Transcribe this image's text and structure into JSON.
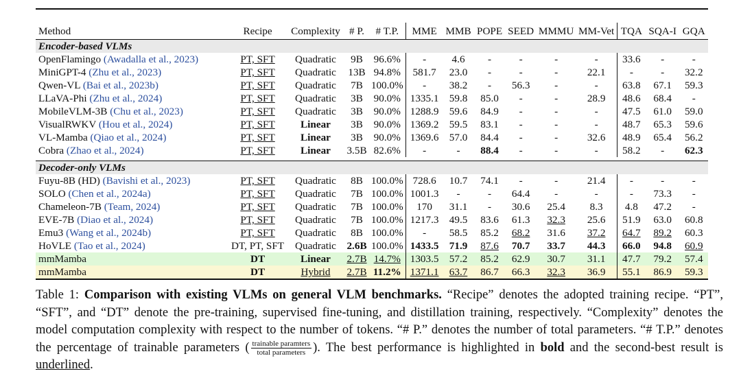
{
  "columns": [
    "Method",
    "Recipe",
    "Complexity",
    "# P.",
    "# T.P.",
    "MME",
    "MMB",
    "POPE",
    "SEED",
    "MMMU",
    "MM-Vet",
    "TQA",
    "SQA-I",
    "GQA"
  ],
  "sections": [
    {
      "title": "Encoder-based VLMs",
      "rows": [
        {
          "name": "OpenFlamingo",
          "cite": "(Awadalla et al., 2023)",
          "cells": [
            "PT, SFT",
            "Quadratic",
            "9B",
            "96.6%",
            "-",
            "4.6",
            "-",
            "-",
            "-",
            "-",
            "33.6",
            "-",
            "-"
          ],
          "bold": [],
          "underline": [
            1
          ]
        },
        {
          "name": "MiniGPT-4",
          "cite": "(Zhu et al., 2023)",
          "cells": [
            "PT, SFT",
            "Quadratic",
            "13B",
            "94.8%",
            "581.7",
            "23.0",
            "-",
            "-",
            "-",
            "22.1",
            "-",
            "-",
            "32.2"
          ],
          "bold": [],
          "underline": [
            1
          ]
        },
        {
          "name": "Qwen-VL",
          "cite": "(Bai et al., 2023b)",
          "cells": [
            "PT, SFT",
            "Quadratic",
            "7B",
            "100.0%",
            "-",
            "38.2",
            "-",
            "56.3",
            "-",
            "-",
            "63.8",
            "67.1",
            "59.3"
          ],
          "bold": [],
          "underline": [
            1
          ]
        },
        {
          "name": "LLaVA-Phi",
          "cite": "(Zhu et al., 2024)",
          "cells": [
            "PT, SFT",
            "Quadratic",
            "3B",
            "90.0%",
            "1335.1",
            "59.8",
            "85.0",
            "-",
            "-",
            "28.9",
            "48.6",
            "68.4",
            "-"
          ],
          "bold": [],
          "underline": [
            1
          ]
        },
        {
          "name": "MobileVLM-3B",
          "cite": "(Chu et al., 2023)",
          "cells": [
            "PT, SFT",
            "Quadratic",
            "3B",
            "90.0%",
            "1288.9",
            "59.6",
            "84.9",
            "-",
            "-",
            "-",
            "47.5",
            "61.0",
            "59.0"
          ],
          "bold": [],
          "underline": [
            1
          ]
        },
        {
          "name": "VisualRWKV",
          "cite": "(Hou et al., 2024)",
          "cells": [
            "PT, SFT",
            "Linear",
            "3B",
            "90.0%",
            "1369.2",
            "59.5",
            "83.1",
            "-",
            "-",
            "-",
            "48.7",
            "65.3",
            "59.6"
          ],
          "bold": [
            2
          ],
          "underline": [
            1
          ]
        },
        {
          "name": "VL-Mamba",
          "cite": "(Qiao et al., 2024)",
          "cells": [
            "PT, SFT",
            "Linear",
            "3B",
            "90.0%",
            "1369.6",
            "57.0",
            "84.4",
            "-",
            "-",
            "32.6",
            "48.9",
            "65.4",
            "56.2"
          ],
          "bold": [
            2
          ],
          "underline": [
            1
          ]
        },
        {
          "name": "Cobra",
          "cite": "(Zhao et al., 2024)",
          "cells": [
            "PT, SFT",
            "Linear",
            "3.5B",
            "82.6%",
            "-",
            "-",
            "88.4",
            "-",
            "-",
            "-",
            "58.2",
            "-",
            "62.3"
          ],
          "bold": [
            2,
            7,
            13
          ],
          "underline": [
            1
          ]
        }
      ]
    },
    {
      "title": "Decoder-only VLMs",
      "rows": [
        {
          "name": "Fuyu-8B (HD)",
          "cite": "(Bavishi et al., 2023)",
          "cells": [
            "PT, SFT",
            "Quadratic",
            "8B",
            "100.0%",
            "728.6",
            "10.7",
            "74.1",
            "-",
            "-",
            "21.4",
            "-",
            "-",
            "-"
          ],
          "bold": [],
          "underline": [
            1
          ]
        },
        {
          "name": "SOLO",
          "cite": "(Chen et al., 2024a)",
          "cells": [
            "PT, SFT",
            "Quadratic",
            "7B",
            "100.0%",
            "1001.3",
            "-",
            "-",
            "64.4",
            "-",
            "-",
            "-",
            "73.3",
            "-"
          ],
          "bold": [],
          "underline": [
            1
          ]
        },
        {
          "name": "Chameleon-7B",
          "cite": "(Team, 2024)",
          "cells": [
            "PT, SFT",
            "Quadratic",
            "7B",
            "100.0%",
            "170",
            "31.1",
            "-",
            "30.6",
            "25.4",
            "8.3",
            "4.8",
            "47.2",
            "-"
          ],
          "bold": [],
          "underline": [
            1
          ]
        },
        {
          "name": "EVE-7B",
          "cite": "(Diao et al., 2024)",
          "cells": [
            "PT, SFT",
            "Quadratic",
            "7B",
            "100.0%",
            "1217.3",
            "49.5",
            "83.6",
            "61.3",
            "32.3",
            "25.6",
            "51.9",
            "63.0",
            "60.8"
          ],
          "bold": [],
          "underline": [
            1,
            9
          ]
        },
        {
          "name": "Emu3",
          "cite": "(Wang et al., 2024b)",
          "cells": [
            "PT, SFT",
            "Quadratic",
            "8B",
            "100.0%",
            "-",
            "58.5",
            "85.2",
            "68.2",
            "31.6",
            "37.2",
            "64.7",
            "89.2",
            "60.3"
          ],
          "bold": [],
          "underline": [
            1,
            8,
            10,
            11,
            12
          ]
        },
        {
          "name": "HoVLE",
          "cite": "(Tao et al., 2024)",
          "cells": [
            "DT, PT, SFT",
            "Quadratic",
            "2.6B",
            "100.0%",
            "1433.5",
            "71.9",
            "87.6",
            "70.7",
            "33.7",
            "44.3",
            "66.0",
            "94.8",
            "60.9"
          ],
          "bold": [
            3,
            5,
            6,
            8,
            9,
            10,
            11,
            12
          ],
          "underline": [
            7,
            13
          ]
        },
        {
          "name": "mmMamba",
          "cite": "",
          "cells": [
            "DT",
            "Linear",
            "2.7B",
            "14.7%",
            "1303.5",
            "57.2",
            "85.2",
            "62.9",
            "30.7",
            "31.1",
            "47.7",
            "79.2",
            "57.4"
          ],
          "bold": [
            1,
            2
          ],
          "underline": [
            3,
            4
          ],
          "style": "green"
        },
        {
          "name": "mmMamba",
          "cite": "",
          "cells": [
            "DT",
            "Hybrid",
            "2.7B",
            "11.2%",
            "1371.1",
            "63.7",
            "86.7",
            "66.3",
            "32.3",
            "36.9",
            "55.1",
            "86.9",
            "59.3"
          ],
          "bold": [
            1,
            4
          ],
          "underline": [
            2,
            3,
            5,
            6,
            9
          ],
          "style": "yellow"
        }
      ]
    }
  ],
  "caption": {
    "lead": "Table 1: ",
    "title": "Comparison with existing VLMs on general VLM benchmarks.",
    "part1": " “Recipe” denotes the adopted training recipe. “PT”, “SFT”, and “DT” denote the pre-training, supervised fine-tuning, and distillation training, respectively. “Complexity” denotes the model computation complexity with respect to the number of tokens. “# P.” denotes the number of total parameters. “# T.P.” denotes the percentage of trainable parameters (",
    "frac_num": "trainable paramters",
    "frac_den": "total parameters",
    "part2": "). The best performance is highlighted in ",
    "bold_word": "bold",
    "part3": " and the second-best result is ",
    "underline_word": "underlined",
    "part4": "."
  }
}
